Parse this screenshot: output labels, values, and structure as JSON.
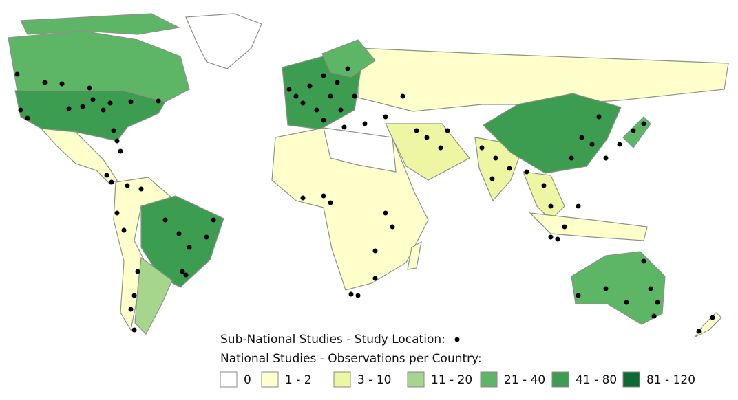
{
  "legend": {
    "point_label": "Sub-National Studies - Study Location:",
    "class_title": "National Studies - Observations per Country:",
    "classes": [
      {
        "label": "0",
        "color": "#ffffff"
      },
      {
        "label": "1 - 2",
        "color": "#ffffcc"
      },
      {
        "label": "3 - 10",
        "color": "#eef5a3"
      },
      {
        "label": "11 - 20",
        "color": "#a5d68c"
      },
      {
        "label": "21 - 40",
        "color": "#5db665"
      },
      {
        "label": "41 - 80",
        "color": "#3c9c4f"
      },
      {
        "label": "81 - 120",
        "color": "#0b6b31"
      }
    ]
  }
}
